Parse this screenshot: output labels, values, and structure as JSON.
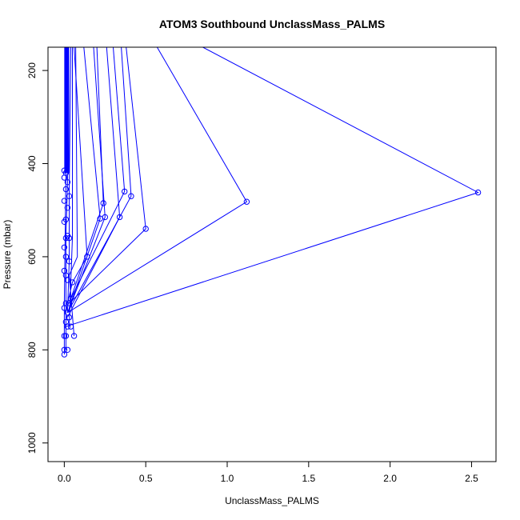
{
  "chart_data": {
    "type": "scatter",
    "title": "ATOM3 Southbound UnclassMass_PALMS",
    "xlabel": "UnclassMass_PALMS",
    "ylabel": "Pressure (mbar)",
    "xlim": [
      -0.1,
      2.65
    ],
    "ylim": [
      1040,
      150
    ],
    "y_reversed": true,
    "x_ticks": [
      0.0,
      0.5,
      1.0,
      1.5,
      2.0,
      2.5
    ],
    "x_tick_labels": [
      "0.0",
      "0.5",
      "1.0",
      "1.5",
      "2.0",
      "2.5"
    ],
    "y_ticks": [
      200,
      400,
      600,
      800,
      1000
    ],
    "y_tick_labels": [
      "200",
      "400",
      "600",
      "800",
      "1000"
    ],
    "series_color": "#0000ff",
    "style": "lines+open-circles",
    "grid": false,
    "profile_lines": [
      [
        [
          0.85,
          150
        ],
        [
          2.54,
          462
        ],
        [
          0.01,
          750
        ]
      ],
      [
        [
          0.57,
          150
        ],
        [
          1.12,
          482
        ],
        [
          0.02,
          720
        ]
      ],
      [
        [
          0.38,
          150
        ],
        [
          0.5,
          540
        ],
        [
          0.03,
          700
        ]
      ],
      [
        [
          0.35,
          150
        ],
        [
          0.41,
          470
        ],
        [
          0.02,
          720
        ]
      ],
      [
        [
          0.3,
          150
        ],
        [
          0.37,
          460
        ],
        [
          0.04,
          690
        ]
      ],
      [
        [
          0.26,
          150
        ],
        [
          0.34,
          515
        ],
        [
          0.02,
          730
        ]
      ],
      [
        [
          0.2,
          150
        ],
        [
          0.24,
          485
        ],
        [
          0.03,
          700
        ]
      ],
      [
        [
          0.18,
          150
        ],
        [
          0.25,
          515
        ],
        [
          0.02,
          720
        ]
      ],
      [
        [
          0.12,
          150
        ],
        [
          0.22,
          518
        ],
        [
          0.03,
          710
        ]
      ],
      [
        [
          0.06,
          150
        ],
        [
          0.14,
          600
        ],
        [
          0.05,
          655
        ],
        [
          0.02,
          700
        ]
      ],
      [
        [
          0.07,
          150
        ],
        [
          0.08,
          600
        ],
        [
          0.03,
          640
        ],
        [
          0.06,
          770
        ]
      ],
      [
        [
          0.05,
          150
        ],
        [
          0.05,
          560
        ],
        [
          0.04,
          655
        ],
        [
          0.03,
          750
        ]
      ],
      [
        [
          0.04,
          150
        ],
        [
          0.03,
          470
        ],
        [
          0.03,
          610
        ],
        [
          0.02,
          720
        ]
      ],
      [
        [
          0.02,
          150
        ],
        [
          0.02,
          440
        ],
        [
          0.01,
          560
        ],
        [
          0.01,
          800
        ]
      ],
      [
        [
          0.01,
          150
        ],
        [
          0.01,
          420
        ],
        [
          0.0,
          700
        ],
        [
          0.0,
          810
        ]
      ]
    ],
    "markers": [
      [
        2.54,
        462
      ],
      [
        1.12,
        482
      ],
      [
        0.5,
        540
      ],
      [
        0.41,
        470
      ],
      [
        0.37,
        460
      ],
      [
        0.34,
        515
      ],
      [
        0.24,
        485
      ],
      [
        0.25,
        515
      ],
      [
        0.22,
        518
      ],
      [
        0.14,
        600
      ],
      [
        0.06,
        770
      ],
      [
        0.05,
        655
      ],
      [
        0.04,
        690
      ],
      [
        0.04,
        750
      ],
      [
        0.03,
        470
      ],
      [
        0.03,
        560
      ],
      [
        0.03,
        610
      ],
      [
        0.03,
        700
      ],
      [
        0.03,
        730
      ],
      [
        0.02,
        440
      ],
      [
        0.02,
        495
      ],
      [
        0.02,
        555
      ],
      [
        0.02,
        650
      ],
      [
        0.02,
        720
      ],
      [
        0.02,
        750
      ],
      [
        0.02,
        800
      ],
      [
        0.01,
        420
      ],
      [
        0.01,
        455
      ],
      [
        0.01,
        520
      ],
      [
        0.01,
        560
      ],
      [
        0.01,
        600
      ],
      [
        0.01,
        640
      ],
      [
        0.01,
        700
      ],
      [
        0.01,
        740
      ],
      [
        0.01,
        770
      ],
      [
        0.0,
        415
      ],
      [
        0.0,
        430
      ],
      [
        0.0,
        480
      ],
      [
        0.0,
        525
      ],
      [
        0.0,
        580
      ],
      [
        0.0,
        630
      ],
      [
        0.0,
        710
      ],
      [
        0.0,
        770
      ],
      [
        0.0,
        800
      ],
      [
        0.0,
        810
      ]
    ]
  }
}
